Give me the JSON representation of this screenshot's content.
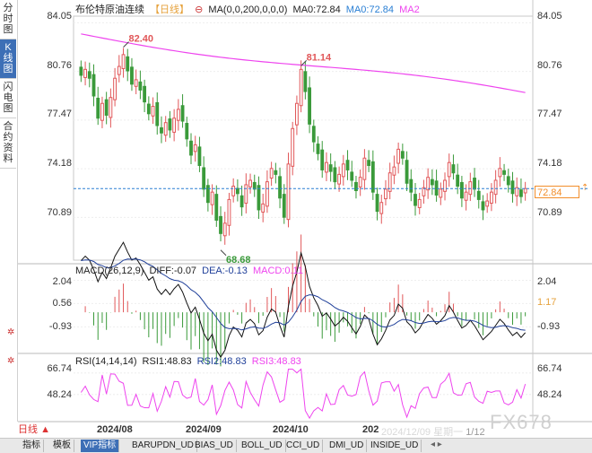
{
  "left_tabs": [
    {
      "label": "分时图",
      "active": false
    },
    {
      "label": "K线图",
      "active": true
    },
    {
      "label": "闪电图",
      "active": false
    },
    {
      "label": "合约资料",
      "active": false
    }
  ],
  "header": {
    "title": "布伦特原油连续",
    "period": "【日线】",
    "ma_label": "MA(0,0,200,0,0,0)",
    "ma0": "MA0:72.84",
    "ma0b": "MA0:72.84",
    "ma2": "MA2"
  },
  "price_axis": [
    "84.05",
    "80.76",
    "77.47",
    "74.18",
    "70.89"
  ],
  "annotations": {
    "high1": "82.40",
    "high2": "81.14",
    "low": "68.68"
  },
  "last_price": "72.84",
  "macd": {
    "title": "MACD(26,12,9)",
    "diff": "DIFF:-0.07",
    "dea": "DEA:-0.13",
    "macd": "MACD:0.11",
    "axis": [
      "2.04",
      "0.56",
      "-0.93"
    ],
    "right_axis": [
      "2.04",
      "-0.93"
    ],
    "current": "1.17"
  },
  "rsi": {
    "title": "RSI(14,14,14)",
    "rsi1": "RSI1:48.83",
    "rsi2": "RSI2:48.83",
    "rsi3": "RSI3:48.83",
    "axis": [
      "66.74",
      "48.24"
    ]
  },
  "dates": [
    "2024/08",
    "2024/09",
    "2024/10",
    "202"
  ],
  "cursor_info": "2024/12/09 星期一",
  "cursor_tail": "1/12",
  "period_button": "日线",
  "watermark": "FX678",
  "bottom_tabs": [
    "指标",
    "模板",
    "VIP指标",
    "BARUPDN_UD",
    "BIAS_UD",
    "BOLL_UD",
    "CCI_UD",
    "DMI_UD",
    "INSIDE_UD"
  ],
  "colors": {
    "up": "#e15759",
    "down": "#3a9a3a",
    "ma": "#ee44ee",
    "price_line": "#2a7fd4",
    "dea": "#1f3f99"
  },
  "chart_data": {
    "type": "candlestick",
    "ylim": [
      68.0,
      84.5
    ],
    "ohlc_summary": {
      "max_high": 82.4,
      "second_high": 81.14,
      "min_low": 68.68,
      "last_close": 72.84
    },
    "closes": [
      80.5,
      80.9,
      80.3,
      79.1,
      77.6,
      78.6,
      77.8,
      79.0,
      80.3,
      81.1,
      81.9,
      80.8,
      79.9,
      80.2,
      79.5,
      78.7,
      77.9,
      78.4,
      77.1,
      76.6,
      77.3,
      76.8,
      77.6,
      78.2,
      77.4,
      76.2,
      75.1,
      75.8,
      74.4,
      72.8,
      71.9,
      72.6,
      70.7,
      69.8,
      70.5,
      72.1,
      73.0,
      72.5,
      71.6,
      73.1,
      73.4,
      72.8,
      71.4,
      71.8,
      73.3,
      74.2,
      73.8,
      72.2,
      70.9,
      74.5,
      76.9,
      78.6,
      80.9,
      79.4,
      77.2,
      76.0,
      75.2,
      74.1,
      74.6,
      74.0,
      73.3,
      73.8,
      74.5,
      74.1,
      73.4,
      72.7,
      73.6,
      74.9,
      74.4,
      72.6,
      71.3,
      71.9,
      72.8,
      73.9,
      74.3,
      75.5,
      74.9,
      73.2,
      72.6,
      71.7,
      72.1,
      72.9,
      73.6,
      73.1,
      72.4,
      72.8,
      73.4,
      74.6,
      73.9,
      73.0,
      72.2,
      72.6,
      73.3,
      72.8,
      72.1,
      71.4,
      72.0,
      72.6,
      73.4,
      74.2,
      73.8,
      73.1,
      72.5,
      72.9,
      72.3,
      72.84
    ],
    "ma_series": {
      "start": 83.3,
      "end": 79.2
    },
    "macd_range": [
      -2.4,
      2.3
    ],
    "rsi_range": [
      25,
      75
    ]
  }
}
